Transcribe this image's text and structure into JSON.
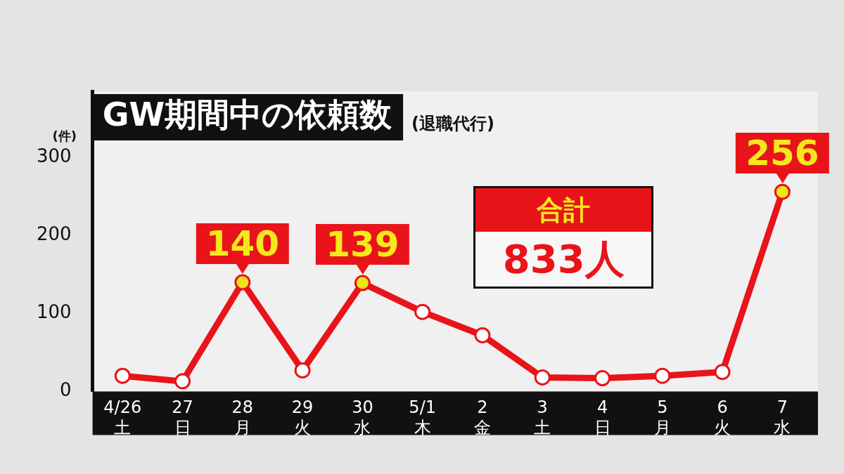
{
  "chart_data": {
    "type": "line",
    "title": "GW期間中の依頼数",
    "subtitle": "(退職代行)",
    "ylabel": "(件)",
    "categories": [
      "4/26\n土",
      "27\n日",
      "28\n月",
      "29\n火",
      "30\n水",
      "5/1\n木",
      "2\n金",
      "3\n土",
      "4\n日",
      "5\n月",
      "6\n火",
      "7\n水"
    ],
    "values": [
      20,
      13,
      140,
      27,
      139,
      102,
      72,
      18,
      17,
      20,
      25,
      256
    ],
    "value_labels": [
      null,
      null,
      "140",
      null,
      "139",
      null,
      null,
      null,
      null,
      null,
      null,
      "256"
    ],
    "color": "#e8141a",
    "marker": "circle",
    "annotations": [
      "合計",
      "833人"
    ],
    "ylim": [
      0,
      385
    ],
    "yticks": [
      0,
      100,
      200,
      300
    ]
  }
}
